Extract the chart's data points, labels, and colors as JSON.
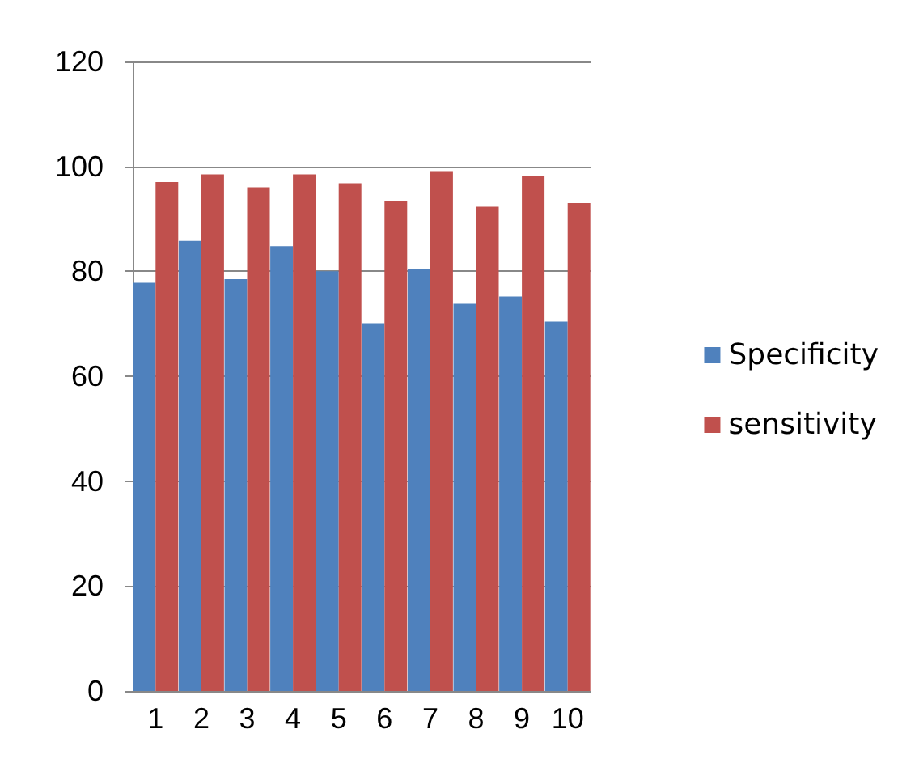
{
  "chart_data": {
    "type": "bar",
    "categories": [
      "1",
      "2",
      "3",
      "4",
      "5",
      "6",
      "7",
      "8",
      "9",
      "10"
    ],
    "series": [
      {
        "name": "Specificity",
        "color": "#4f81bd",
        "values": [
          77.8,
          85.8,
          78.5,
          84.8,
          80,
          70.1,
          80.5,
          73.8,
          75.2,
          70.4
        ]
      },
      {
        "name": "sensitivity",
        "color": "#c0504d",
        "values": [
          97,
          98.5,
          96,
          98.5,
          96.8,
          93.3,
          99.1,
          92.3,
          98.1,
          93
        ]
      }
    ],
    "ylim": [
      0,
      120
    ],
    "yticks": [
      0,
      20,
      40,
      60,
      80,
      100,
      120
    ],
    "grid": "y",
    "legend": "right"
  }
}
